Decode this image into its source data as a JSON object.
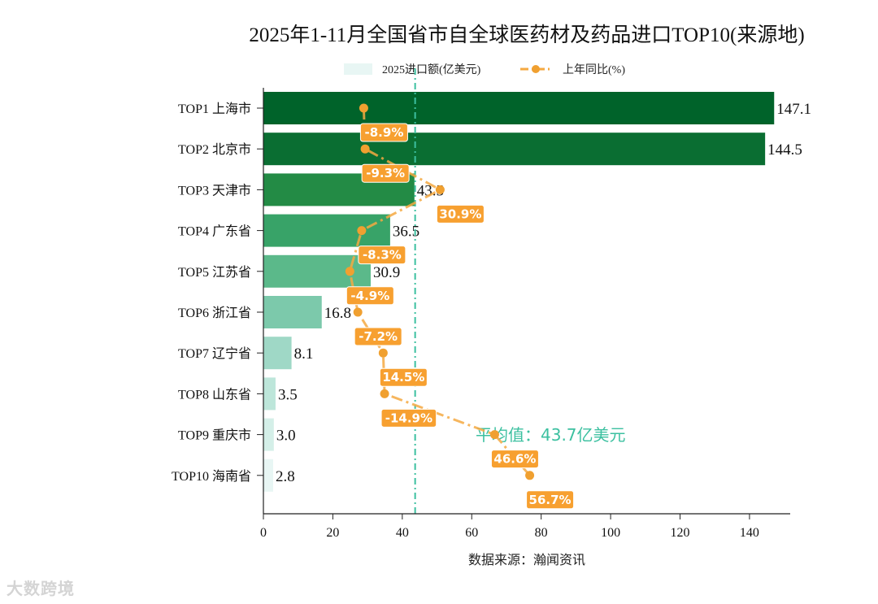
{
  "chart_data": {
    "type": "bar",
    "orientation": "horizontal",
    "title": "2025年1-11月全国省市自全球医药材及药品进口TOP10(来源地)",
    "xlabel": "数据来源：瀚闻资讯",
    "ylabel": "",
    "xlim": [
      0,
      155
    ],
    "xticks": [
      0,
      20,
      40,
      60,
      80,
      100,
      120,
      140
    ],
    "legend": {
      "placement": "top-center",
      "bar_label": "2025进口额(亿美元)",
      "line_label": "上年同比(%)"
    },
    "categories": [
      "TOP1 上海市",
      "TOP2 北京市",
      "TOP3 天津市",
      "TOP4 广东省",
      "TOP5 江苏省",
      "TOP6 浙江省",
      "TOP7 辽宁省",
      "TOP8 山东省",
      "TOP9 重庆市",
      "TOP10 海南省"
    ],
    "values": [
      147.1,
      144.5,
      43.5,
      36.5,
      30.9,
      16.8,
      8.1,
      3.5,
      3.0,
      2.8
    ],
    "value_labels": [
      "147.1",
      "144.5",
      "43.5",
      "36.5",
      "30.9",
      "16.8",
      "8.1",
      "3.5",
      "3.0",
      "2.8"
    ],
    "yoy": [
      -8.9,
      -9.3,
      30.9,
      -8.3,
      -4.9,
      -7.2,
      14.5,
      -14.9,
      46.6,
      56.7
    ],
    "yoy_labels": [
      "-8.9%",
      "-9.3%",
      "30.9%",
      "-8.3%",
      "-4.9%",
      "-7.2%",
      "14.5%",
      "-14.9%",
      "46.6%",
      "56.7%"
    ],
    "average": 43.7,
    "average_label": "平均值：43.7亿美元",
    "colors": {
      "bars": [
        "#00632a",
        "#0a6e32",
        "#238b45",
        "#38a368",
        "#5bb98a",
        "#7cc9ab",
        "#9fd8c6",
        "#bde6da",
        "#d4efe8",
        "#e8f6f4"
      ],
      "line": "#f5a942",
      "marker": "#f0a030",
      "label_bg": "#f7a030",
      "average": "#3cc0a0",
      "legend_bar": "#e8f6f4"
    }
  },
  "watermark": "大数跨境"
}
